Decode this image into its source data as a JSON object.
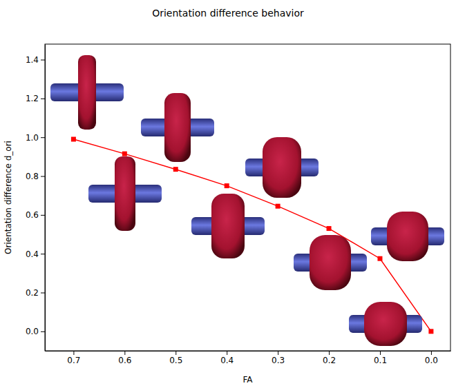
{
  "chart_data": {
    "type": "line",
    "title": "Orientation difference behavior",
    "x_label": "FA",
    "y_label": "Orientation difference d_ori",
    "x": [
      0.7,
      0.6,
      0.5,
      0.4,
      0.3,
      0.2,
      0.1,
      0.0
    ],
    "values": [
      0.99,
      0.915,
      0.835,
      0.75,
      0.645,
      0.53,
      0.375,
      0.0
    ],
    "color": "#ff0000",
    "marker": "square",
    "line_style": "solid",
    "xlim": [
      0.756,
      -0.038
    ],
    "xticks": [
      0.7,
      0.6,
      0.5,
      0.4,
      0.3,
      0.2,
      0.1,
      {
        "value": 0,
        "label": "0.0"
      }
    ],
    "ylim": [
      -0.1,
      1.48
    ],
    "yticks": [
      {
        "value": 0,
        "label": "0.0"
      },
      0.2,
      0.4,
      0.6,
      0.8,
      {
        "value": 1,
        "label": "1.0"
      },
      1.2,
      1.4
    ],
    "grid": false
  }
}
